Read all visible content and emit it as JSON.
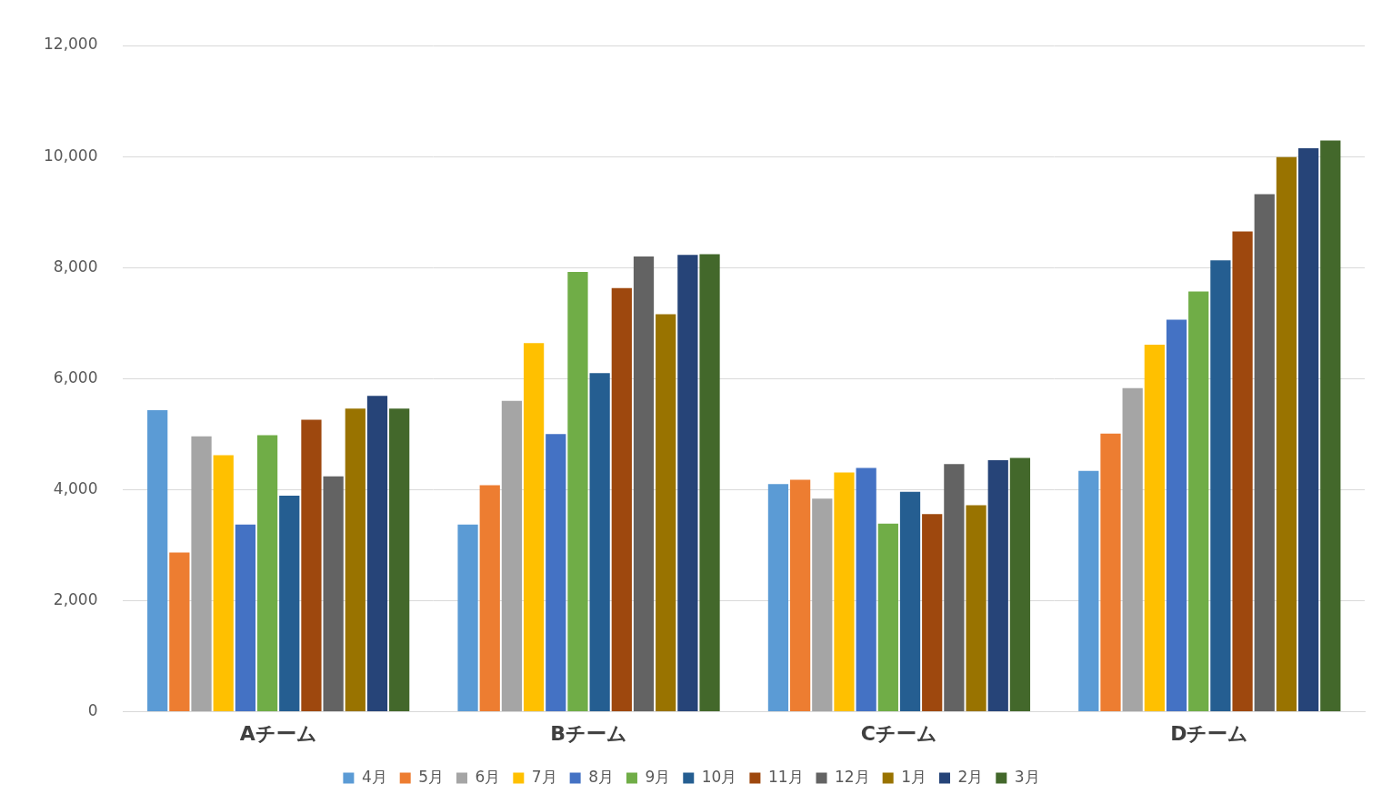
{
  "chart_data": {
    "type": "bar",
    "categories": [
      "Aチーム",
      "Bチーム",
      "Cチーム",
      "Dチーム"
    ],
    "series": [
      {
        "name": "4月",
        "color": "#5b9bd5",
        "values": [
          5430,
          3370,
          4100,
          4340
        ]
      },
      {
        "name": "5月",
        "color": "#ed7d31",
        "values": [
          2870,
          4080,
          4180,
          5010
        ]
      },
      {
        "name": "6月",
        "color": "#a5a5a5",
        "values": [
          4960,
          5600,
          3840,
          5830
        ]
      },
      {
        "name": "7月",
        "color": "#ffc000",
        "values": [
          4620,
          6640,
          4310,
          6610
        ]
      },
      {
        "name": "8月",
        "color": "#4472c4",
        "values": [
          3370,
          5000,
          4390,
          7060
        ]
      },
      {
        "name": "9月",
        "color": "#70ad47",
        "values": [
          4980,
          7920,
          3390,
          7570
        ]
      },
      {
        "name": "10月",
        "color": "#255e91",
        "values": [
          3890,
          6100,
          3960,
          8130
        ]
      },
      {
        "name": "11月",
        "color": "#9e480e",
        "values": [
          5260,
          7630,
          3560,
          8650
        ]
      },
      {
        "name": "12月",
        "color": "#636363",
        "values": [
          4240,
          8200,
          4460,
          9320
        ]
      },
      {
        "name": "1月",
        "color": "#997300",
        "values": [
          5460,
          7160,
          3720,
          9990
        ]
      },
      {
        "name": "2月",
        "color": "#264478",
        "values": [
          5690,
          8230,
          4530,
          10150
        ]
      },
      {
        "name": "3月",
        "color": "#43682b",
        "values": [
          5460,
          8240,
          4570,
          10290
        ]
      }
    ],
    "ylim": [
      0,
      12000
    ],
    "yticks": [
      0,
      {
        "value": 2000,
        "label": "2,000"
      },
      {
        "value": 4000,
        "label": "4,000"
      },
      {
        "value": 6000,
        "label": "6,000"
      },
      {
        "value": 8000,
        "label": "8,000"
      },
      {
        "value": 10000,
        "label": "10,000"
      },
      {
        "value": 12000,
        "label": "12,000"
      }
    ],
    "grid": true,
    "legend": "bottom"
  }
}
